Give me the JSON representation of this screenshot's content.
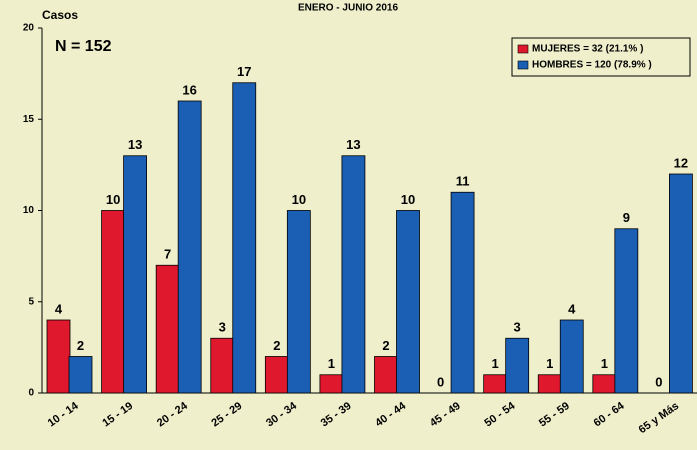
{
  "chart_data": {
    "type": "bar",
    "title": "ENERO - JUNIO 2016",
    "y_label": "Casos",
    "annotation": "N = 152",
    "categories": [
      "10 - 14",
      "15 - 19",
      "20 - 24",
      "25 - 29",
      "30 - 34",
      "35 - 39",
      "40 - 44",
      "45 - 49",
      "50 - 54",
      "55 - 59",
      "60 - 64",
      "65 y Más"
    ],
    "series": [
      {
        "name": "MUJERES = 32 (21.1% )",
        "color": "#e0182d",
        "values": [
          4,
          10,
          7,
          3,
          2,
          1,
          2,
          0,
          1,
          1,
          1,
          0
        ]
      },
      {
        "name": "HOMBRES = 120 (78.9% )",
        "color": "#1a5fb4",
        "values": [
          2,
          13,
          16,
          17,
          10,
          13,
          10,
          11,
          3,
          4,
          9,
          12
        ]
      }
    ],
    "ylim": [
      0,
      20
    ],
    "yticks": [
      0,
      5,
      10,
      15,
      20
    ],
    "legend": "upper right"
  }
}
